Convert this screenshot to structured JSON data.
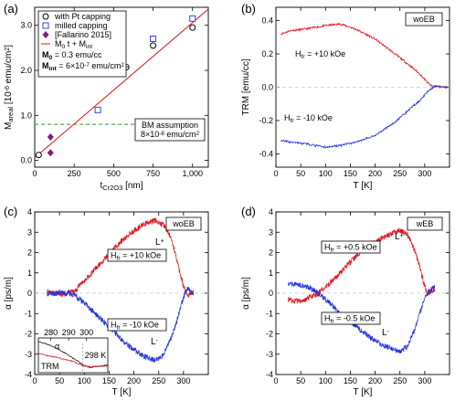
{
  "chart_data": [
    {
      "panel": "(a)",
      "type": "scatter",
      "xlabel_main": "t",
      "xlabel_sub": "Cr2O3",
      "xlabel_unit": "[nm]",
      "ylabel_main": "M",
      "ylabel_sub": "areal",
      "ylabel_unit": "[10",
      "ylabel_exp": "-6",
      "ylabel_unit2": " emu/cm",
      "ylabel_exp2": "2",
      "ylabel_close": "]",
      "xlim": [
        0,
        1100
      ],
      "ylim": [
        -0.15,
        3.4
      ],
      "xticks": [
        0,
        250,
        500,
        750,
        1000
      ],
      "xtick_labels": [
        "0",
        "250",
        "500",
        "750",
        "1,000"
      ],
      "yticks": [
        0,
        1,
        2,
        3
      ],
      "ytick_labels": [
        "0.0",
        "1.0",
        "2.0",
        "3.0"
      ],
      "legend": {
        "placement": "top-left",
        "entries": [
          {
            "key": "pt",
            "marker": "circle",
            "label": "with Pt capping"
          },
          {
            "key": "mill",
            "marker": "square",
            "label": "milled capping"
          },
          {
            "key": "fall",
            "marker": "diamond",
            "label": "[Fallarino 2015]"
          },
          {
            "key": "fit",
            "marker": "line",
            "label_main": "M",
            "label_s1": "0",
            "label_t1": " t + M",
            "label_s2": "int"
          }
        ],
        "param1_main": "M",
        "param1_sub": "0",
        "param1_text": " = 0.3 emu/cc",
        "param2_main": "M",
        "param2_sub": "int",
        "param2_text": " = 6×10",
        "param2_exp": "-7",
        "param2_text2": " emu/cm",
        "param2_exp2": "2"
      },
      "series": [
        {
          "key": "pt",
          "points": [
            [
              25,
              0.12
            ],
            [
              750,
              2.55
            ],
            [
              1000,
              2.95
            ]
          ],
          "color": "#000000"
        },
        {
          "key": "mill",
          "points": [
            [
              400,
              1.12
            ],
            [
              750,
              2.7
            ],
            [
              1000,
              3.15
            ]
          ],
          "color": "#3344dd"
        },
        {
          "key": "fall",
          "points": [
            [
              100,
              0.52
            ],
            [
              100,
              0.17
            ]
          ],
          "color": "#7a1d86"
        }
      ],
      "fit": {
        "slope": 0.003,
        "intercept": 0.06,
        "color": "#e0141e",
        "x": [
          0,
          1100
        ]
      },
      "hline": {
        "y": 0.8,
        "color": "#2a9a2a"
      },
      "annotation": {
        "line1": "BM assumption",
        "line2_text": "8×10",
        "line2_exp": "-8",
        "line2_text2": " emu/cm",
        "line2_exp2": "2"
      },
      "hourglass": {
        "text": "ϴ",
        "x": 580,
        "y": 2.08
      }
    },
    {
      "panel": "(b)",
      "type": "line",
      "xlabel": "T [K]",
      "ylabel": "TRM [emu/cc]",
      "xlim": [
        0,
        350
      ],
      "ylim": [
        -0.48,
        0.48
      ],
      "xticks": [
        0,
        50,
        100,
        150,
        200,
        250,
        300
      ],
      "yticks": [
        -0.4,
        -0.2,
        0,
        0.2,
        0.4
      ],
      "ytick_labels": [
        "-0.4",
        "-0.2",
        "0.0",
        "0.2",
        "0.4"
      ],
      "tag": "woEB",
      "series": [
        {
          "name_main": "H",
          "name_sub": "fr",
          "name_text": " = +10 kOe",
          "color": "#e0141e",
          "points": [
            [
              10,
              0.32
            ],
            [
              30,
              0.34
            ],
            [
              60,
              0.35
            ],
            [
              100,
              0.37
            ],
            [
              130,
              0.38
            ],
            [
              160,
              0.35
            ],
            [
              200,
              0.29
            ],
            [
              240,
              0.2
            ],
            [
              270,
              0.13
            ],
            [
              290,
              0.08
            ],
            [
              305,
              0.03
            ],
            [
              312,
              0.01
            ],
            [
              320,
              0.005
            ],
            [
              345,
              0.0
            ]
          ]
        },
        {
          "name_main": "H",
          "name_sub": "fr",
          "name_text": " = -10 kOe",
          "color": "#2233dd",
          "points": [
            [
              10,
              -0.32
            ],
            [
              30,
              -0.33
            ],
            [
              60,
              -0.34
            ],
            [
              100,
              -0.36
            ],
            [
              130,
              -0.35
            ],
            [
              160,
              -0.33
            ],
            [
              200,
              -0.29
            ],
            [
              240,
              -0.21
            ],
            [
              270,
              -0.13
            ],
            [
              290,
              -0.08
            ],
            [
              305,
              -0.03
            ],
            [
              312,
              -0.01
            ],
            [
              320,
              0.005
            ],
            [
              345,
              0.0
            ]
          ]
        }
      ]
    },
    {
      "panel": "(c)",
      "type": "line",
      "xlabel": "T [K]",
      "ylabel": "α [ps/m]",
      "xlim": [
        0,
        350
      ],
      "ylim": [
        -4,
        4
      ],
      "xticks": [
        0,
        50,
        100,
        150,
        200,
        250,
        300
      ],
      "yticks": [
        -4,
        -3,
        -2,
        -1,
        0,
        1,
        2,
        3,
        4
      ],
      "tag": "woEB",
      "series": [
        {
          "name_main": "H",
          "name_sub": "fr",
          "name_text": " = +10 kOe",
          "color": "#e0141e",
          "points": [
            [
              25,
              0.1
            ],
            [
              40,
              0.0
            ],
            [
              60,
              -0.05
            ],
            [
              80,
              0.1
            ],
            [
              100,
              0.6
            ],
            [
              130,
              1.4
            ],
            [
              160,
              2.2
            ],
            [
              190,
              2.9
            ],
            [
              220,
              3.4
            ],
            [
              245,
              3.6
            ],
            [
              262,
              3.3
            ],
            [
              275,
              2.7
            ],
            [
              285,
              1.8
            ],
            [
              295,
              0.8
            ],
            [
              303,
              0.1
            ],
            [
              310,
              -0.1
            ],
            [
              315,
              0.05
            ],
            [
              320,
              0.0
            ]
          ]
        },
        {
          "name_main": "H",
          "name_sub": "fr",
          "name_text": " = -10 kOe",
          "color": "#2233dd",
          "points": [
            [
              25,
              0.0
            ],
            [
              40,
              0.0
            ],
            [
              60,
              0.05
            ],
            [
              80,
              -0.1
            ],
            [
              100,
              -0.5
            ],
            [
              130,
              -1.2
            ],
            [
              160,
              -1.9
            ],
            [
              190,
              -2.6
            ],
            [
              220,
              -3.1
            ],
            [
              240,
              -3.3
            ],
            [
              255,
              -3.2
            ],
            [
              270,
              -2.5
            ],
            [
              285,
              -1.5
            ],
            [
              295,
              -0.6
            ],
            [
              303,
              0.0
            ],
            [
              310,
              0.25
            ],
            [
              315,
              0.05
            ],
            [
              320,
              0.0
            ]
          ]
        }
      ],
      "letters": {
        "upper": "L",
        "upper_sup": "+",
        "lower": "L",
        "lower_sup": "-"
      },
      "inset": {
        "xticks": [
          280,
          290,
          300
        ],
        "xlim": [
          273,
          312
        ],
        "label_alpha": "α",
        "label_trm": "TRM",
        "label_t": "298 K",
        "alpha_points": [
          [
            273,
            0.9
          ],
          [
            280,
            0.78
          ],
          [
            285,
            0.65
          ],
          [
            290,
            0.5
          ],
          [
            295,
            0.34
          ],
          [
            298,
            0.22
          ],
          [
            302,
            0.15
          ],
          [
            306,
            0.18
          ],
          [
            312,
            0.22
          ]
        ],
        "trm_points": [
          [
            273,
            0.55
          ],
          [
            280,
            0.48
          ],
          [
            285,
            0.42
          ],
          [
            290,
            0.36
          ],
          [
            295,
            0.27
          ],
          [
            298,
            0.2
          ],
          [
            302,
            0.17
          ],
          [
            306,
            0.18
          ],
          [
            312,
            0.19
          ]
        ]
      }
    },
    {
      "panel": "(d)",
      "type": "line",
      "xlabel": "T [K]",
      "ylabel": "α [ps/m]",
      "xlim": [
        0,
        350
      ],
      "ylim": [
        -4,
        4
      ],
      "xticks": [
        0,
        50,
        100,
        150,
        200,
        250,
        300
      ],
      "yticks": [
        -4,
        -3,
        -2,
        -1,
        0,
        1,
        2,
        3,
        4
      ],
      "tag": "wEB",
      "series": [
        {
          "name_main": "H",
          "name_sub": "fr",
          "name_text": " = +0.5 kOe",
          "color": "#e0141e",
          "points": [
            [
              25,
              -0.3
            ],
            [
              40,
              -0.4
            ],
            [
              60,
              -0.3
            ],
            [
              80,
              -0.1
            ],
            [
              100,
              0.3
            ],
            [
              130,
              1.0
            ],
            [
              160,
              1.8
            ],
            [
              190,
              2.4
            ],
            [
              220,
              2.8
            ],
            [
              250,
              3.1
            ],
            [
              265,
              2.9
            ],
            [
              280,
              2.1
            ],
            [
              290,
              1.3
            ],
            [
              298,
              0.5
            ],
            [
              305,
              0.0
            ],
            [
              312,
              0.1
            ],
            [
              320,
              0.2
            ]
          ]
        },
        {
          "name_main": "H",
          "name_sub": "fr",
          "name_text": " = -0.5 kOe",
          "color": "#2233dd",
          "points": [
            [
              25,
              0.5
            ],
            [
              40,
              0.45
            ],
            [
              60,
              0.35
            ],
            [
              80,
              0.1
            ],
            [
              100,
              -0.3
            ],
            [
              130,
              -1.0
            ],
            [
              160,
              -1.6
            ],
            [
              190,
              -2.2
            ],
            [
              220,
              -2.6
            ],
            [
              250,
              -2.9
            ],
            [
              265,
              -2.6
            ],
            [
              280,
              -1.8
            ],
            [
              290,
              -1.0
            ],
            [
              298,
              -0.4
            ],
            [
              305,
              0.0
            ],
            [
              312,
              0.2
            ],
            [
              320,
              0.3
            ]
          ]
        }
      ],
      "letters": {
        "upper": "L",
        "upper_sup": "+",
        "lower": "L",
        "lower_sup": "-"
      }
    }
  ]
}
